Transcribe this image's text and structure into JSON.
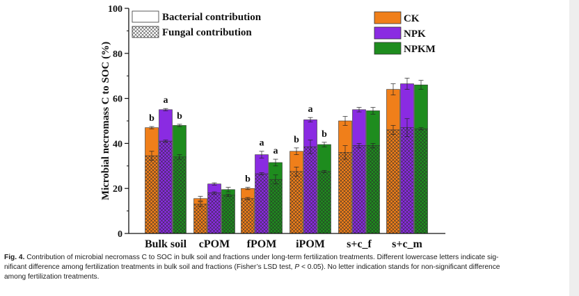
{
  "chart_data": {
    "type": "stacked-bar",
    "ylabel": "Microbial necromass C to SOC (%)",
    "ylim": [
      0,
      100
    ],
    "yticks": [
      0,
      20,
      40,
      60,
      80,
      100
    ],
    "categories": [
      "Bulk soil",
      "cPOM",
      "fPOM",
      "iPOM",
      "s+c_f",
      "s+c_m"
    ],
    "treatments": [
      {
        "name": "CK",
        "color": "#f07f1a"
      },
      {
        "name": "NPK",
        "color": "#8a2be2"
      },
      {
        "name": "NPKM",
        "color": "#1e8c1e"
      }
    ],
    "components": [
      {
        "name": "Bacterial contribution",
        "pattern": "solid"
      },
      {
        "name": "Fungal contribution",
        "pattern": "crosshatch"
      }
    ],
    "series": [
      {
        "name": "CK",
        "total": [
          47,
          15.5,
          20,
          36.5,
          50,
          64
        ],
        "total_err": [
          0.5,
          1,
          0.5,
          1.5,
          2,
          2.5
        ],
        "fungal": [
          34.5,
          13,
          15.5,
          27.5,
          36,
          46
        ],
        "fungal_err": [
          2,
          1,
          0.5,
          2,
          3,
          2
        ],
        "letters": [
          "b",
          "",
          "b",
          "b",
          "",
          ""
        ]
      },
      {
        "name": "NPK",
        "total": [
          55,
          22,
          35,
          50.5,
          55,
          66.5
        ],
        "total_err": [
          0.5,
          0.5,
          1.5,
          1,
          1,
          2.5
        ],
        "fungal": [
          41,
          18,
          26.5,
          38.5,
          39,
          47
        ],
        "fungal_err": [
          0.5,
          0.5,
          0.5,
          3,
          1,
          4
        ],
        "letters": [
          "a",
          "",
          "a",
          "a",
          "",
          ""
        ]
      },
      {
        "name": "NPKM",
        "total": [
          48,
          19.5,
          31.5,
          39.5,
          54.5,
          66
        ],
        "total_err": [
          0.5,
          1,
          1.5,
          1,
          1.5,
          2
        ],
        "fungal": [
          34,
          17,
          24,
          27.5,
          39,
          46.5
        ],
        "fungal_err": [
          1,
          0.5,
          2,
          0.5,
          1,
          0.5
        ],
        "letters": [
          "b",
          "",
          "a",
          "b",
          "",
          ""
        ]
      }
    ]
  },
  "caption": {
    "label": "Fig. 4.",
    "line1": "Contribution of microbial necromass C to SOC in bulk soil and fractions under long-term fertilization treatments. Different lowercase letters indicate sig-",
    "line2_before": "nificant difference among fertilization treatments in bulk soil and fractions (Fisher’s LSD test, ",
    "line2_italic": "P",
    "line2_after": " < 0.05). No letter indication stands for non-significant difference",
    "line3": "among fertilization treatments."
  }
}
